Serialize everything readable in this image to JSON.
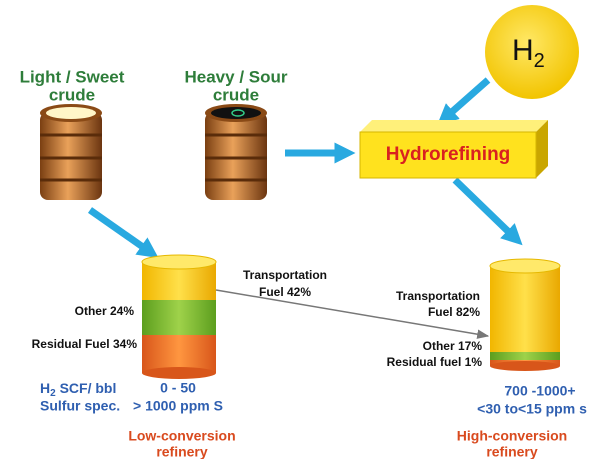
{
  "feeds": {
    "light_sweet": [
      "Light / Sweet",
      "crude"
    ],
    "heavy_sour": [
      "Heavy / Sour",
      "crude"
    ]
  },
  "hydrogen": {
    "main": "H",
    "sub": "2"
  },
  "process": "Hydrorefining",
  "low_conversion": {
    "transportation": [
      "Transportation",
      "Fuel 42%"
    ],
    "other": "Other 24%",
    "residual": "Residual Fuel 34%",
    "h2_label": {
      "main": "H",
      "sub": "2",
      "rest": " SCF/ bbl"
    },
    "sulfur_label": "Sulfur spec.",
    "h2_value": "0 - 50",
    "sulfur_value": "> 1000 ppm S",
    "name": [
      "Low-conversion",
      "refinery"
    ]
  },
  "high_conversion": {
    "transportation": [
      "Transportation",
      "Fuel 82%"
    ],
    "other": "Other 17%",
    "residual": "Residual fuel 1%",
    "h2_value": "700 -1000+",
    "sulfur_value": "<30 to<15 ppm s",
    "name": [
      "High-conversion",
      "refinery"
    ]
  }
}
